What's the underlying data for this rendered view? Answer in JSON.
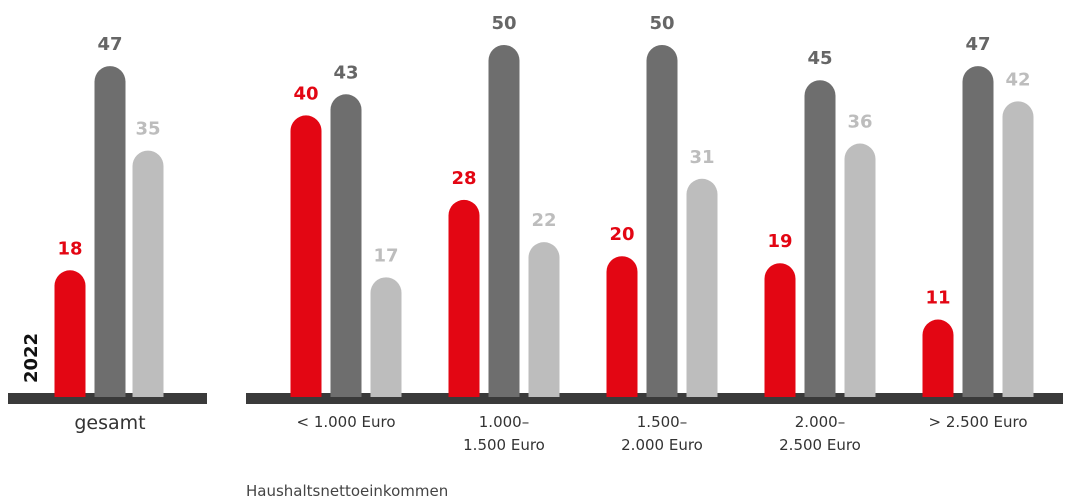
{
  "chart_data": {
    "type": "bar",
    "annotation": "2022",
    "x_label": "Haushaltsnettoeinkommen",
    "categories": [
      "gesamt",
      "< 1.000 Euro",
      "1.000–\n1.500 Euro",
      "1.500–\n2.000 Euro",
      "2.000–\n2.500 Euro",
      "> 2.500 Euro"
    ],
    "series": [
      {
        "color": "#e30613",
        "values": [
          18,
          40,
          28,
          20,
          19,
          11
        ]
      },
      {
        "color": "#6e6e6e",
        "values": [
          47,
          43,
          50,
          50,
          45,
          47
        ]
      },
      {
        "color": "#bdbdbd",
        "values": [
          35,
          17,
          22,
          31,
          36,
          42
        ]
      }
    ],
    "ylim": [
      0,
      50
    ]
  }
}
